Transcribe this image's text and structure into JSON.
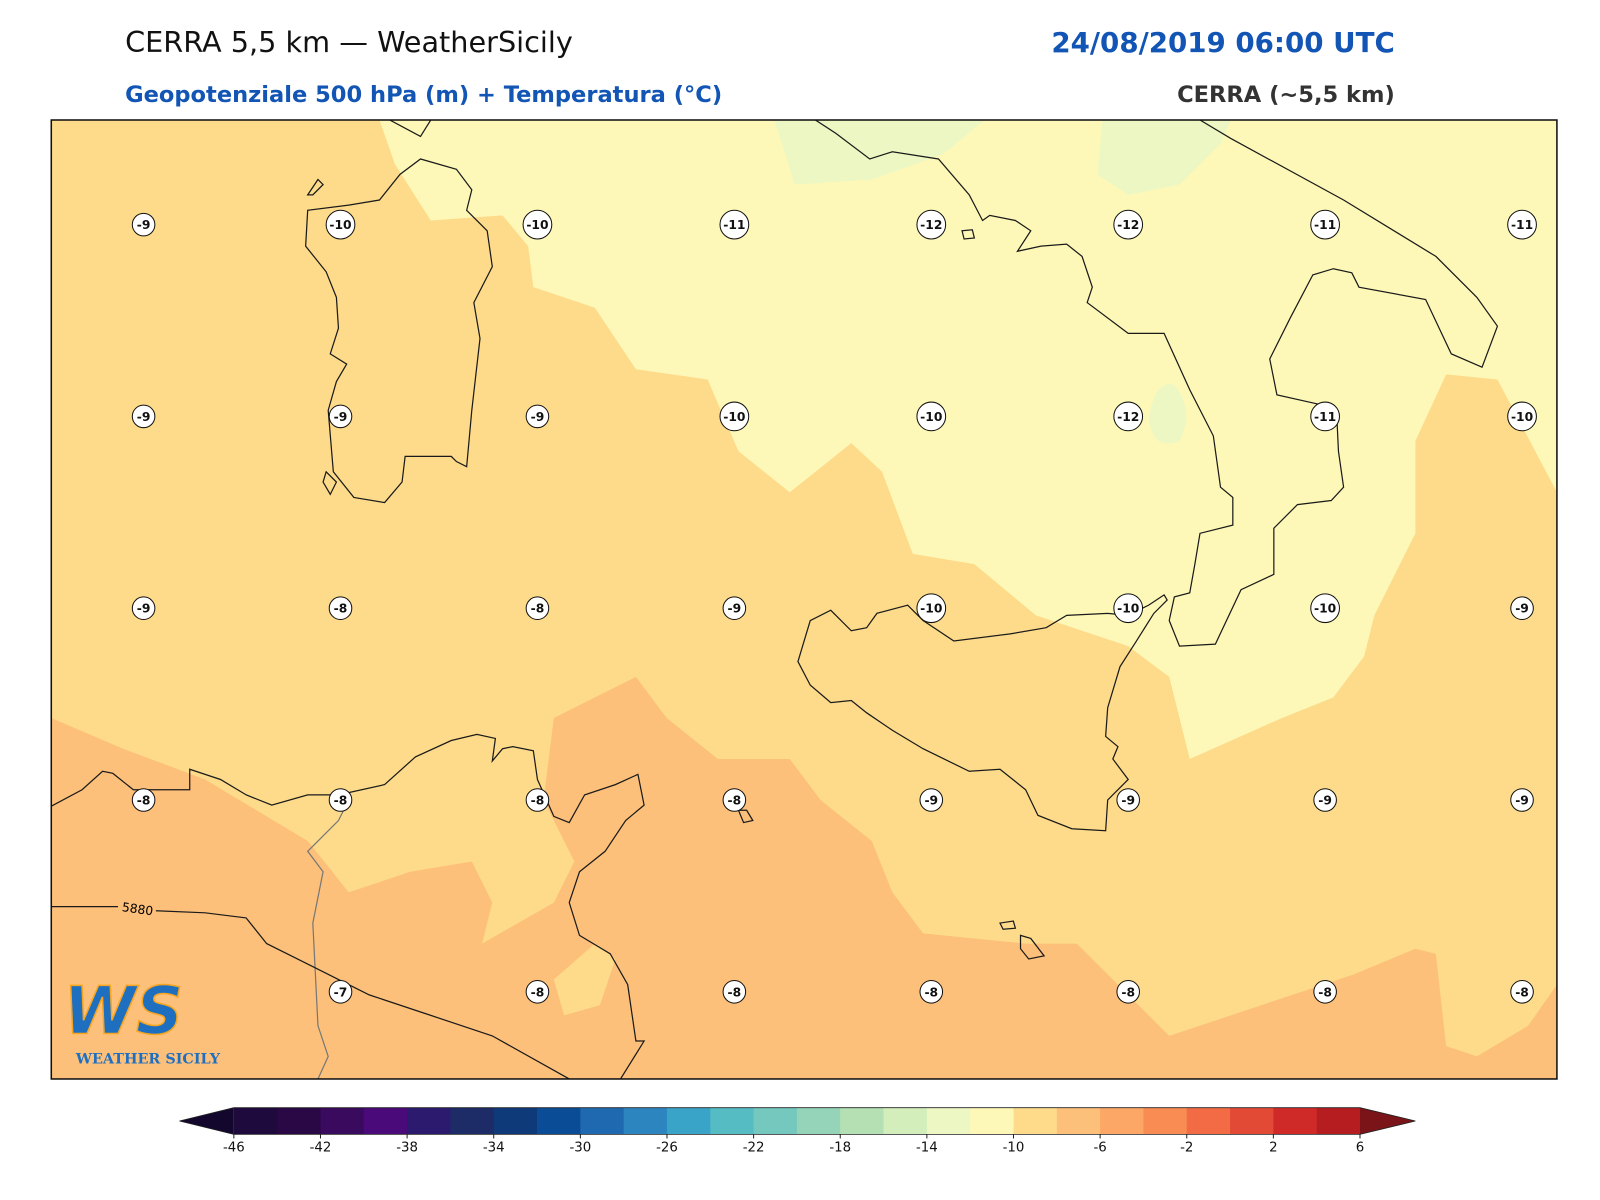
{
  "header": {
    "title": "CERRA 5,5 km — WeatherSicily",
    "datetime": "24/08/2019 06:00 UTC",
    "subtitle": "Geopotenziale 500 hPa (m) + Temperatura (°C)",
    "model": "CERRA (~5,5 km)"
  },
  "map": {
    "temperature_grid": [
      [
        -9,
        -10,
        -10,
        -11,
        -12,
        -12,
        -11,
        -11
      ],
      [
        -9,
        -9,
        -9,
        -10,
        -10,
        -12,
        -11,
        -10
      ],
      [
        -9,
        -8,
        -8,
        -9,
        -10,
        -10,
        -10,
        -9
      ],
      [
        -8,
        -8,
        -8,
        -8,
        -9,
        -9,
        -9,
        -9
      ],
      [
        null,
        -7,
        -8,
        -8,
        -8,
        -8,
        -8,
        -8
      ]
    ],
    "contour_labels": [
      "5880"
    ]
  },
  "colorbar": {
    "lim": [
      -46,
      6
    ],
    "ticks": [
      -46,
      -42,
      -38,
      -34,
      -30,
      -26,
      -22,
      -18,
      -14,
      -10,
      -6,
      -2,
      2,
      6
    ],
    "colors": [
      "#1f0a3d",
      "#2a0845",
      "#3a0a5e",
      "#4a0a7a",
      "#2b1a6e",
      "#1d2b66",
      "#0f3a7a",
      "#0a4d96",
      "#1e69b0",
      "#2d85c0",
      "#3aa3c8",
      "#55bcc4",
      "#74c8bd",
      "#95d4b9",
      "#b5e0b3",
      "#d3eebb",
      "#ecf7c3",
      "#fef8b8",
      "#fddb8a",
      "#fdc07a",
      "#fca766",
      "#f98c52",
      "#f26b45",
      "#e24a35",
      "#cf2a27",
      "#b51d20"
    ],
    "under_color": "#14072e",
    "over_color": "#7a1418"
  },
  "logo": {
    "mark": "WS",
    "name": "WEATHER SICILY"
  }
}
